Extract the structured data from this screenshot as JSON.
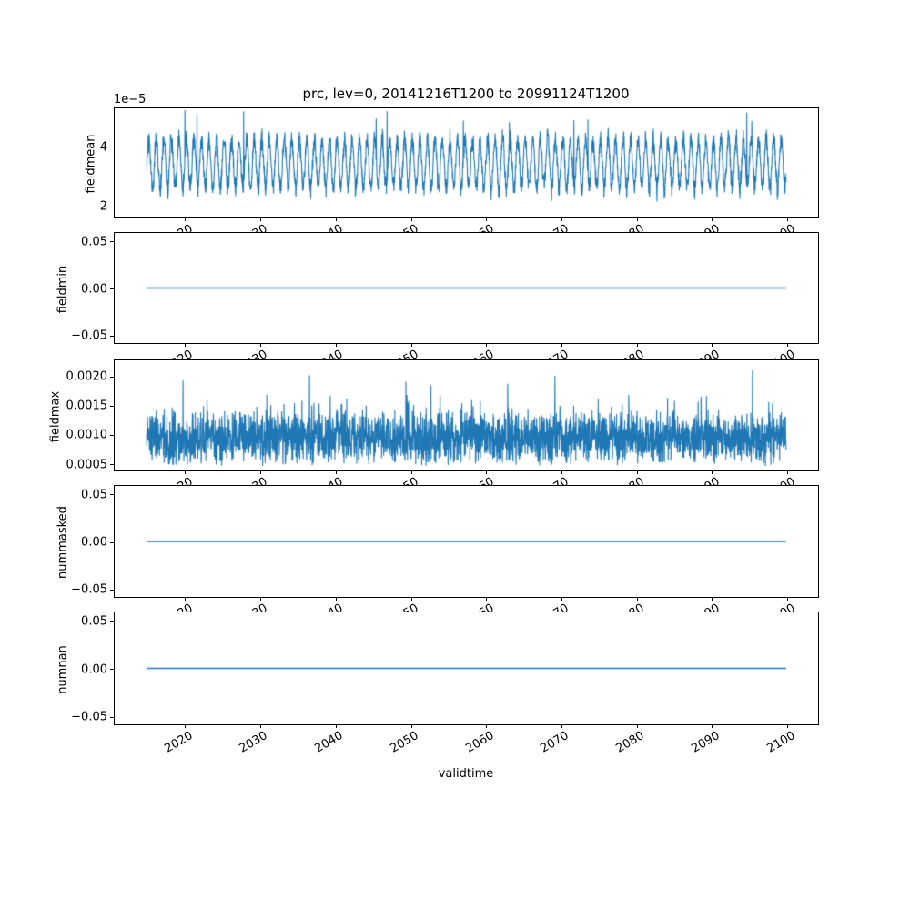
{
  "chart_data": {
    "type": "line",
    "title": "prc, lev=0, 20141216T1200 to 20991124T1200",
    "xlabel": "validtime",
    "line_color": "#1f77b4",
    "xlim": [
      2010.713,
      2104.147
    ],
    "x_data_range": [
      2014.96,
      2099.9
    ],
    "xticks": [
      2020,
      2030,
      2040,
      2050,
      2060,
      2070,
      2080,
      2090,
      2100
    ],
    "xtick_labels": [
      "2020",
      "2030",
      "2040",
      "2050",
      "2060",
      "2070",
      "2080",
      "2090",
      "2100"
    ],
    "subplots": [
      {
        "ylabel": "fieldmean",
        "offset_label": "1e−5",
        "ylim": [
          1.62e-05,
          5.26e-05
        ],
        "ytick_values": [
          2e-05,
          4e-05
        ],
        "ytick_labels": [
          "2",
          "4"
        ],
        "series": {
          "kind": "seasonal-noise",
          "mean": 3.42e-05,
          "seasonal_amplitude": 8.3e-06,
          "noise_amplitude": 3.2e-06,
          "period_years": 1,
          "floor": 1.9e-05,
          "spike_max": 5.22e-05,
          "points": 3060
        }
      },
      {
        "ylabel": "fieldmin",
        "ylim": [
          -0.0583,
          0.0583
        ],
        "ytick_values": [
          -0.05,
          0,
          0.05
        ],
        "ytick_labels": [
          "−0.05",
          "0.00",
          "0.05"
        ],
        "series": {
          "kind": "constant",
          "value": 0
        }
      },
      {
        "ylabel": "fieldmax",
        "ylim": [
          0.000385,
          0.002265
        ],
        "ytick_values": [
          0.0005,
          0.001,
          0.0015,
          0.002
        ],
        "ytick_labels": [
          "0.0005",
          "0.0010",
          "0.0015",
          "0.0020"
        ],
        "series": {
          "kind": "random-noise",
          "center": 0.00095,
          "noise_amplitude": 0.0005,
          "floor": 0.00042,
          "spike_max": 0.00212,
          "points": 3060
        }
      },
      {
        "ylabel": "nummasked",
        "ylim": [
          -0.0583,
          0.0583
        ],
        "ytick_values": [
          -0.05,
          0,
          0.05
        ],
        "ytick_labels": [
          "−0.05",
          "0.00",
          "0.05"
        ],
        "series": {
          "kind": "constant",
          "value": 0
        }
      },
      {
        "ylabel": "numnan",
        "ylim": [
          -0.0583,
          0.0583
        ],
        "ytick_values": [
          -0.05,
          0,
          0.05
        ],
        "ytick_labels": [
          "−0.05",
          "0.00",
          "0.05"
        ],
        "series": {
          "kind": "constant",
          "value": 0
        }
      }
    ]
  }
}
